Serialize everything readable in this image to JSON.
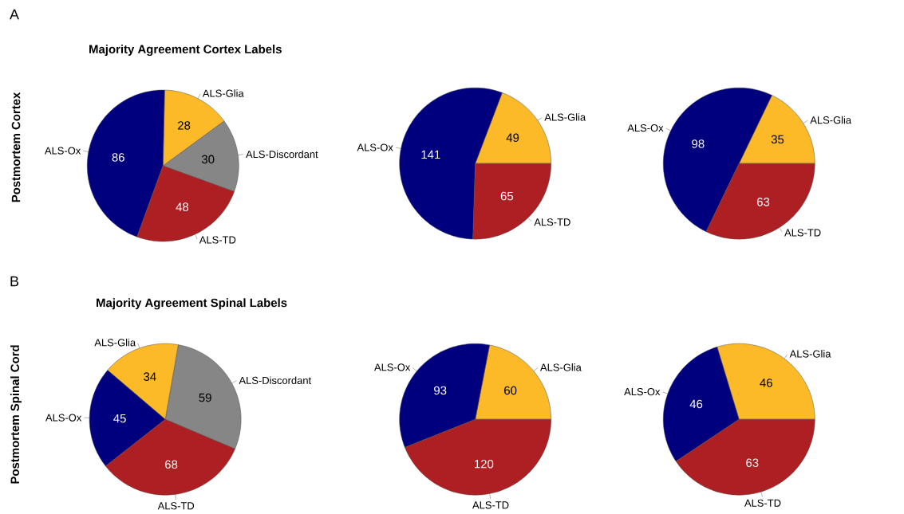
{
  "chart_data": [
    {
      "type": "pie",
      "title": "Majority Agreement Cortex Labels",
      "categories": [
        "ALS-Discordant",
        "ALS-Glia",
        "ALS-Ox",
        "ALS-TD"
      ],
      "values": [
        30,
        28,
        86,
        48
      ],
      "colors": [
        "#868686",
        "#fcb928",
        "#00007f",
        "#ad1f22"
      ],
      "data_labels": true,
      "annotations": [
        "A",
        "Postmortem Cortex"
      ]
    },
    {
      "type": "pie",
      "categories": [
        "ALS-Glia",
        "ALS-Ox",
        "ALS-TD"
      ],
      "values": [
        49,
        141,
        65
      ],
      "colors": [
        "#fcb928",
        "#00007f",
        "#ad1f22"
      ],
      "data_labels": true
    },
    {
      "type": "pie",
      "categories": [
        "ALS-Glia",
        "ALS-Ox",
        "ALS-TD"
      ],
      "values": [
        35,
        98,
        63
      ],
      "colors": [
        "#fcb928",
        "#00007f",
        "#ad1f22"
      ],
      "data_labels": true
    },
    {
      "type": "pie",
      "title": "Majority Agreement Spinal Labels",
      "categories": [
        "ALS-Discordant",
        "ALS-Glia",
        "ALS-Ox",
        "ALS-TD"
      ],
      "values": [
        59,
        34,
        45,
        68
      ],
      "colors": [
        "#868686",
        "#fcb928",
        "#00007f",
        "#ad1f22"
      ],
      "data_labels": true,
      "annotations": [
        "B",
        "Postmortem Spinal Cord"
      ]
    },
    {
      "type": "pie",
      "categories": [
        "ALS-Glia",
        "ALS-Ox",
        "ALS-TD"
      ],
      "values": [
        60,
        93,
        120
      ],
      "colors": [
        "#fcb928",
        "#00007f",
        "#ad1f22"
      ],
      "data_labels": true
    },
    {
      "type": "pie",
      "categories": [
        "ALS-Glia",
        "ALS-Ox",
        "ALS-TD"
      ],
      "values": [
        46,
        46,
        63
      ],
      "colors": [
        "#fcb928",
        "#00007f",
        "#ad1f22"
      ],
      "data_labels": true
    }
  ]
}
